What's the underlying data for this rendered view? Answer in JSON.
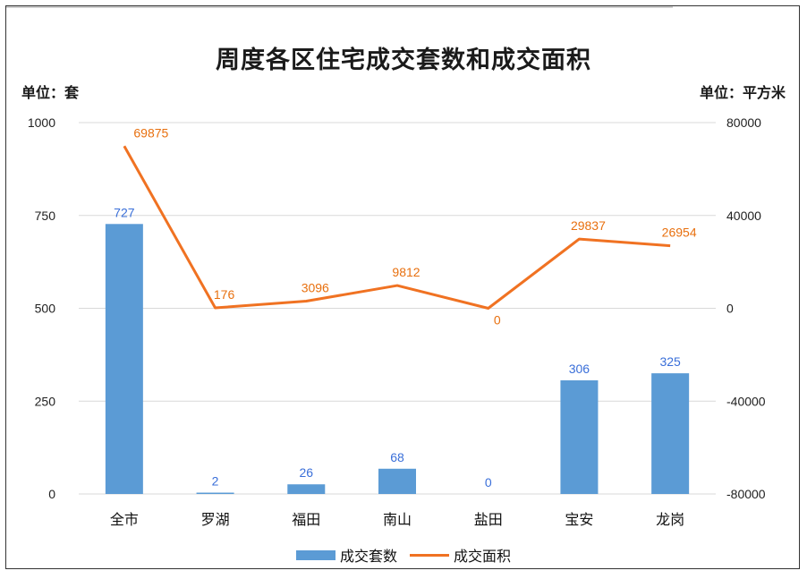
{
  "colors": {
    "bar": "#5b9bd5",
    "line": "#f07222",
    "bar_label": "#3a6fd9",
    "line_label": "#e8700f",
    "grid": "#d9d9d9"
  },
  "chart_data": {
    "type": "bar",
    "title": "周度各区住宅成交套数和成交面积",
    "ylabel": "单位：套",
    "y2label": "单位：平方米",
    "categories": [
      "全市",
      "罗湖",
      "福田",
      "南山",
      "盐田",
      "宝安",
      "龙岗"
    ],
    "ylim": [
      0,
      1000
    ],
    "yticks": [
      0,
      250,
      500,
      750,
      1000
    ],
    "y2lim": [
      -80000,
      80000
    ],
    "y2ticks": [
      -80000,
      -40000,
      0,
      40000,
      80000
    ],
    "series": [
      {
        "name": "成交套数",
        "type": "bar",
        "axis": "left",
        "values": [
          727,
          2,
          26,
          68,
          0,
          306,
          325
        ]
      },
      {
        "name": "成交面积",
        "type": "line",
        "axis": "right",
        "values": [
          69875,
          176,
          3096,
          9812,
          0,
          29837,
          26954
        ]
      }
    ],
    "grid": true,
    "legend": "bottom"
  }
}
